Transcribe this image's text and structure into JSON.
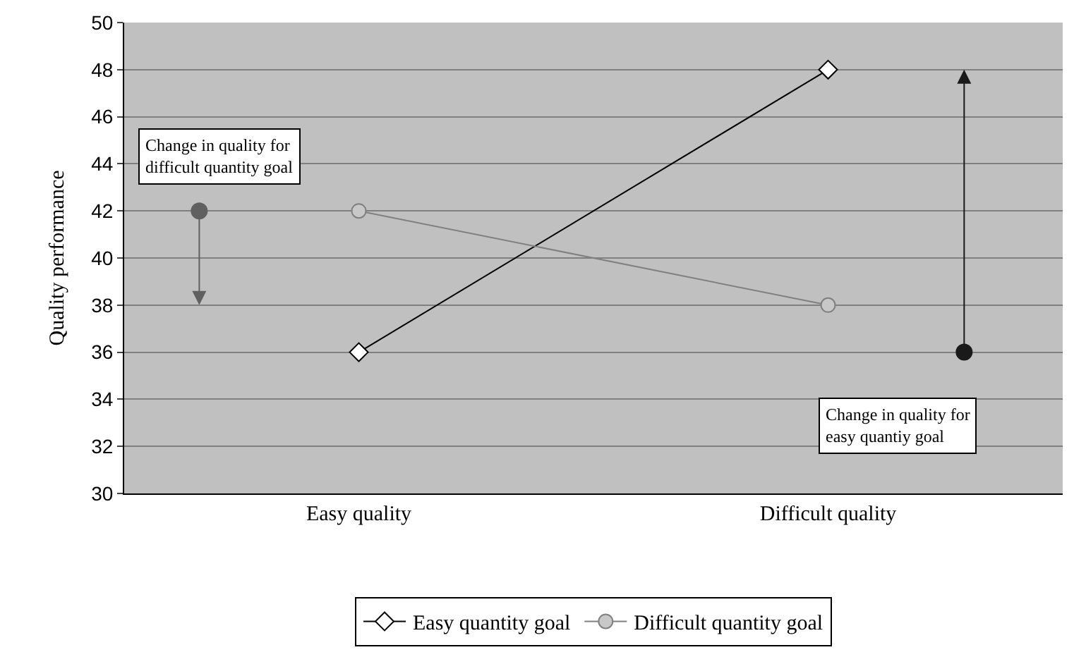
{
  "chart_data": {
    "type": "line",
    "ylabel": "Quality performance",
    "categories": [
      "Easy quality",
      "Difficult quality"
    ],
    "series": [
      {
        "name": "Easy quantity goal",
        "color": "#000000",
        "marker": "diamond",
        "values": [
          36,
          48
        ]
      },
      {
        "name": "Difficult quantity goal",
        "color": "#808080",
        "marker": "circle",
        "values": [
          42,
          38
        ]
      }
    ],
    "ylim": [
      30,
      50
    ],
    "yticks": [
      30,
      32,
      34,
      36,
      38,
      40,
      42,
      44,
      46,
      48,
      50
    ],
    "grid": "y",
    "legend": "bottom",
    "line_style": "solid",
    "annotations": [
      "Change in quality for\ndifficult quantity goal",
      "Change in quality for\neasy quantiy goal"
    ]
  }
}
